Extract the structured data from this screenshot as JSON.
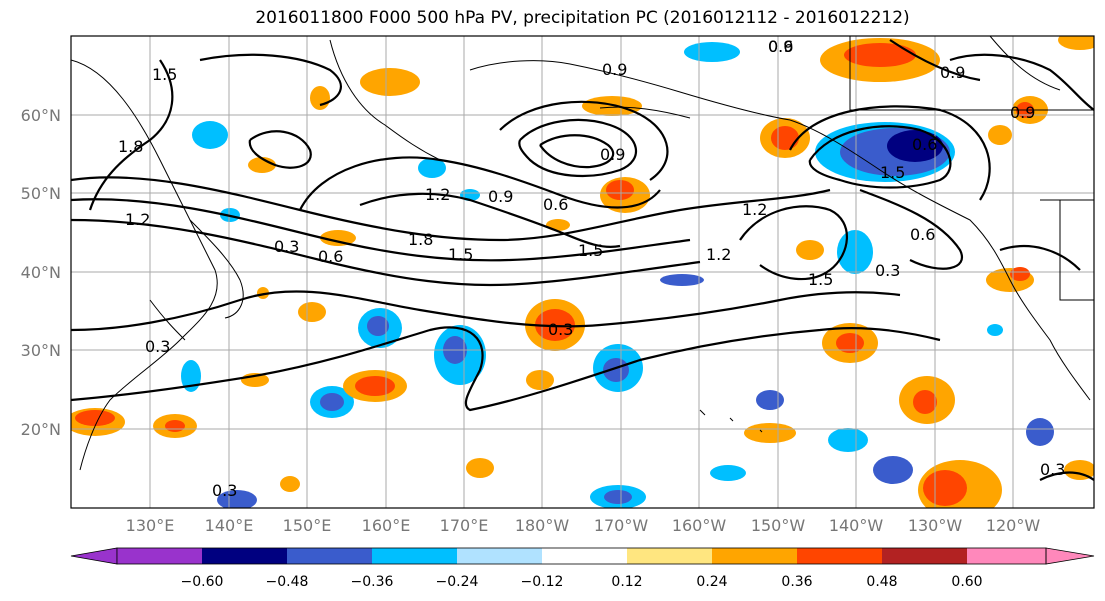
{
  "title": "2016011800 F000 500 hPa PV, precipitation PC (2016012112 - 2016012212)",
  "map": {
    "lon_labels": [
      "130°E",
      "140°E",
      "150°E",
      "160°E",
      "170°E",
      "180°W",
      "170°W",
      "160°W",
      "150°W",
      "140°W",
      "130°W",
      "120°W"
    ],
    "lat_labels": [
      "60°N",
      "50°N",
      "40°N",
      "30°N",
      "20°N"
    ],
    "contour_labels": [
      "1.5",
      "1.8",
      "1.2",
      "0.9",
      "0.6",
      "0.3",
      "0.6",
      "0.9",
      "1.5",
      "1.2",
      "0.9",
      "0.6",
      "0.3",
      "1.2",
      "1.5",
      "1.8",
      "1.2",
      "0.6",
      "0.9",
      "0.3",
      "0.3",
      "0.9",
      "1.5",
      "0.9",
      "0.3",
      "0.3",
      "0.6",
      "1.5"
    ],
    "colors": {
      "purple": "#9933cc",
      "navy": "#000080",
      "blue": "#3a5ccc",
      "deepskyblue": "#00bfff",
      "lightblue": "#b0e2ff",
      "white": "#ffffff",
      "lightyellow": "#ffe680",
      "orange": "#ffa500",
      "orangered": "#ff4500",
      "firebrick": "#b22222",
      "pink": "#ff88bb"
    }
  },
  "colorbar": {
    "ticks": [
      "−0.60",
      "−0.48",
      "−0.36",
      "−0.24",
      "−0.12",
      "0.12",
      "0.24",
      "0.36",
      "0.48",
      "0.60"
    ],
    "colors": [
      "#9933cc",
      "#000080",
      "#3a5ccc",
      "#00bfff",
      "#b0e2ff",
      "#ffffff",
      "#ffe680",
      "#ffa500",
      "#ff4500",
      "#b22222",
      "#ff88bb"
    ]
  }
}
